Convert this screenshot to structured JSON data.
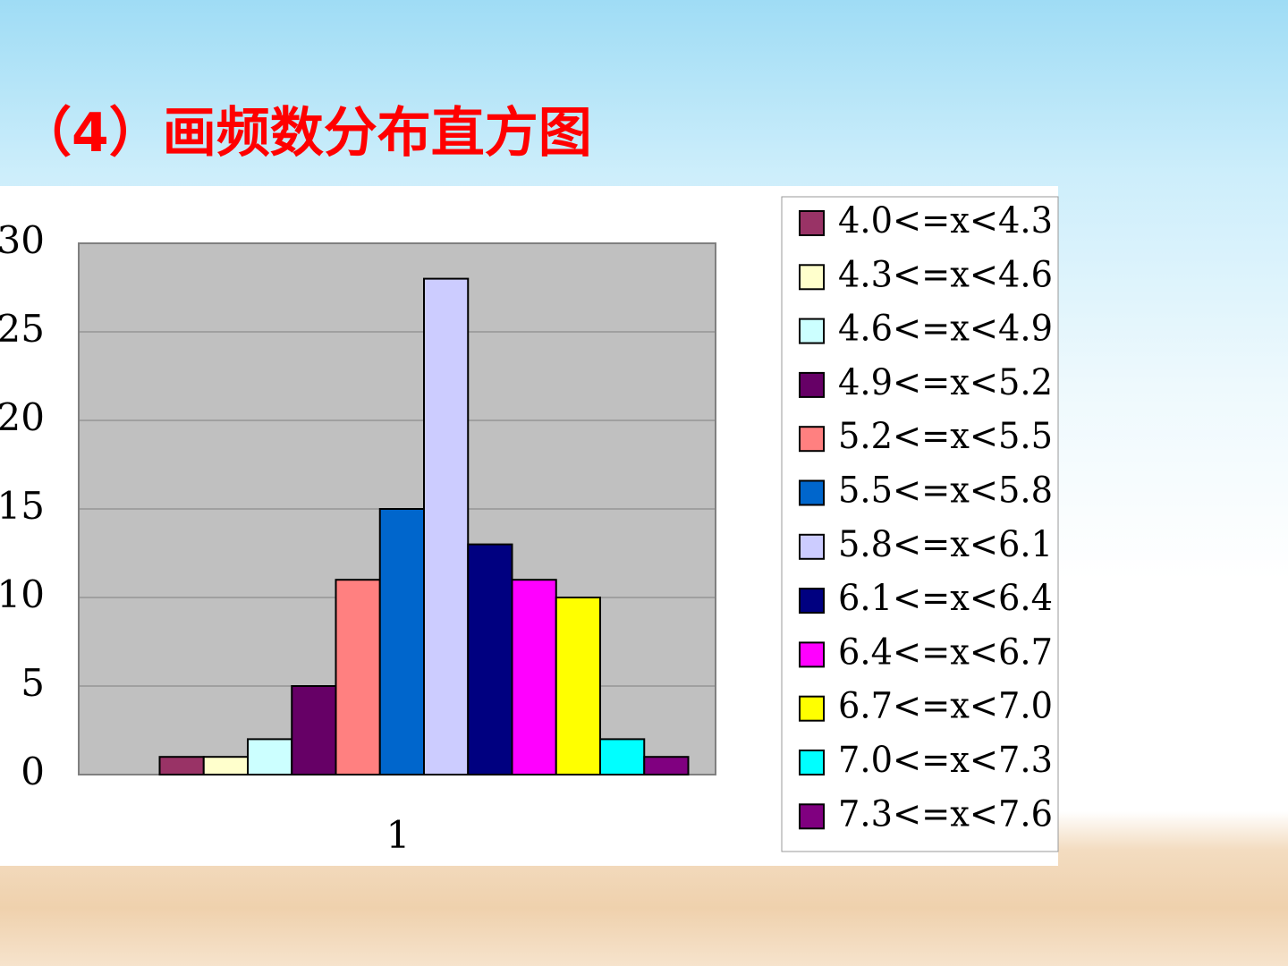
{
  "chart_data": {
    "type": "bar",
    "title": "（4）画频数分布直方图",
    "categories": [
      "1"
    ],
    "ylim": [
      0,
      30
    ],
    "yticks": [
      0,
      5,
      10,
      15,
      20,
      25,
      30
    ],
    "grid": true,
    "plot_background": "#c0c0c0",
    "legend": "right",
    "series": [
      {
        "name": "4.0<=x<4.3",
        "color": "#993366",
        "values": [
          1
        ]
      },
      {
        "name": "4.3<=x<4.6",
        "color": "#ffffcc",
        "values": [
          1
        ]
      },
      {
        "name": "4.6<=x<4.9",
        "color": "#ccffff",
        "values": [
          2
        ]
      },
      {
        "name": "4.9<=x<5.2",
        "color": "#660066",
        "values": [
          5
        ]
      },
      {
        "name": "5.2<=x<5.5",
        "color": "#ff8080",
        "values": [
          11
        ]
      },
      {
        "name": "5.5<=x<5.8",
        "color": "#0066cc",
        "values": [
          15
        ]
      },
      {
        "name": "5.8<=x<6.1",
        "color": "#ccccff",
        "values": [
          28
        ]
      },
      {
        "name": "6.1<=x<6.4",
        "color": "#000080",
        "values": [
          13
        ]
      },
      {
        "name": "6.4<=x<6.7",
        "color": "#ff00ff",
        "values": [
          11
        ]
      },
      {
        "name": "6.7<=x<7.0",
        "color": "#ffff00",
        "values": [
          10
        ]
      },
      {
        "name": "7.0<=x<7.3",
        "color": "#00ffff",
        "values": [
          2
        ]
      },
      {
        "name": "7.3<=x<7.6",
        "color": "#800080",
        "values": [
          1
        ]
      }
    ]
  }
}
